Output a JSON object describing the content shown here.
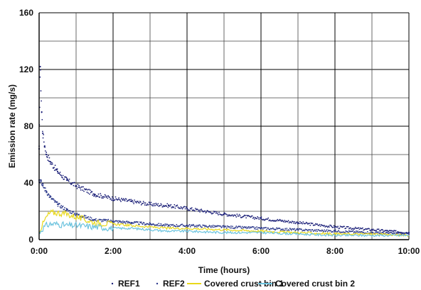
{
  "chart_data": {
    "type": "scatter",
    "xlabel": "Time (hours)",
    "ylabel": "Emission rate (mg/s)",
    "xlim": [
      0,
      10
    ],
    "ylim": [
      0,
      160
    ],
    "x_ticks": [
      0,
      2,
      4,
      6,
      8,
      10
    ],
    "x_tick_labels": [
      "0:00",
      "2:00",
      "4:00",
      "6:00",
      "8:00",
      "10:00"
    ],
    "x_minor_gridlines": [
      1,
      3,
      5,
      7,
      9
    ],
    "y_ticks": [
      0,
      40,
      80,
      120,
      160
    ],
    "y_tick_labels": [
      "0",
      "40",
      "80",
      "120",
      "160"
    ],
    "y_minor_gridlines": [
      20,
      60,
      100,
      140
    ],
    "grid": true,
    "legend_position": "bottom",
    "series": [
      {
        "name": "REF1",
        "marker": "dots",
        "color": "#1f237a",
        "x": [
          0,
          0.03,
          0.07,
          0.1,
          0.15,
          0.2,
          0.3,
          0.5,
          0.75,
          1,
          1.5,
          2,
          2.5,
          3,
          3.5,
          4,
          5,
          6,
          7,
          8,
          9,
          10
        ],
        "y": [
          64,
          122,
          90,
          75,
          66,
          60,
          55,
          48,
          42,
          38,
          32,
          29,
          27,
          25,
          24,
          22,
          18,
          15,
          12,
          9,
          7,
          5
        ]
      },
      {
        "name": "REF2",
        "marker": "dots",
        "color": "#2d3a8c",
        "x": [
          0,
          0.05,
          0.1,
          0.2,
          0.3,
          0.5,
          0.75,
          1,
          1.5,
          2,
          2.5,
          3,
          3.5,
          4,
          5,
          6,
          7,
          8,
          9,
          10
        ],
        "y": [
          42,
          42,
          38,
          34,
          30,
          25,
          21,
          18,
          14,
          13,
          12,
          11,
          10,
          10,
          9,
          8,
          7,
          6,
          5,
          4
        ]
      },
      {
        "name": "Covered crust bin 1",
        "marker": "line",
        "color": "#e8d81a",
        "x": [
          0,
          0.1,
          0.2,
          0.3,
          0.5,
          0.75,
          1,
          1.25,
          1.5,
          2,
          2.5,
          3,
          3.5,
          4,
          5,
          6,
          7,
          8,
          9,
          10
        ],
        "y": [
          6,
          11,
          16,
          19,
          19,
          18,
          16,
          14,
          12,
          11,
          10,
          9,
          8,
          8,
          7,
          6,
          5,
          4,
          4,
          3
        ]
      },
      {
        "name": "Covered crust bin 2",
        "marker": "line",
        "color": "#6cc3de",
        "x": [
          0,
          0.1,
          0.2,
          0.3,
          0.5,
          0.75,
          1,
          1.5,
          2,
          2.5,
          3,
          3.5,
          4,
          5,
          6,
          7,
          8,
          9,
          10
        ],
        "y": [
          5,
          8,
          10,
          11,
          11,
          10,
          10,
          9,
          8,
          8,
          7,
          6,
          6,
          5,
          5,
          4,
          3,
          3,
          3
        ]
      }
    ]
  }
}
